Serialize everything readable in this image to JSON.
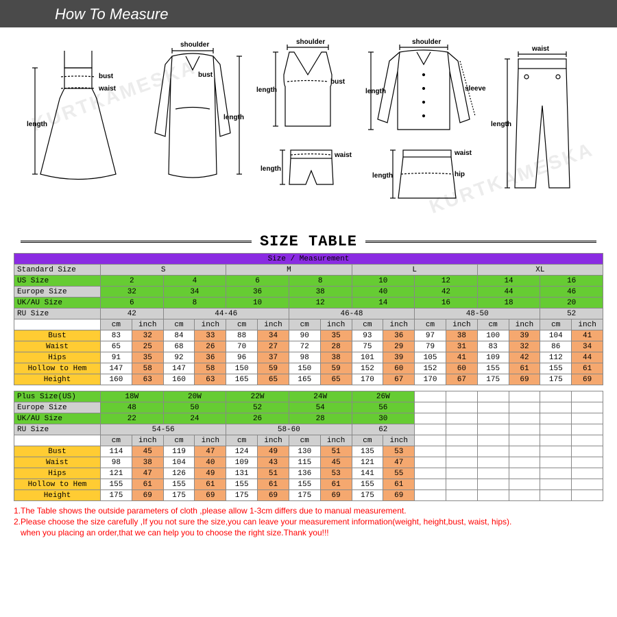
{
  "header": {
    "title": "How To Measure"
  },
  "size_table_title": "SIZE TABLE",
  "diagram_labels": {
    "bust": "bust",
    "waist": "waist",
    "length": "length",
    "shoulder": "shoulder",
    "sleeve": "sleeve",
    "hip": "hip"
  },
  "table1": {
    "header": "Size / Measurement",
    "rows": {
      "standard": {
        "label": "Standard Size",
        "vals": [
          "S",
          "M",
          "L",
          "XL"
        ]
      },
      "us": {
        "label": "US Size",
        "vals": [
          "2",
          "4",
          "6",
          "8",
          "10",
          "12",
          "14",
          "16"
        ]
      },
      "eu": {
        "label": "Europe Size",
        "vals": [
          "32",
          "34",
          "36",
          "38",
          "40",
          "42",
          "44",
          "46"
        ]
      },
      "ukau": {
        "label": "UK/AU Size",
        "vals": [
          "6",
          "8",
          "10",
          "12",
          "14",
          "16",
          "18",
          "20"
        ]
      },
      "ru": {
        "label": "RU Size",
        "vals": [
          "42",
          "44-46",
          "46-48",
          "48-50",
          "52"
        ]
      },
      "unit": {
        "cm": "cm",
        "inch": "inch"
      },
      "bust": {
        "label": "Bust",
        "cm": [
          "83",
          "84",
          "88",
          "90",
          "93",
          "97",
          "100",
          "104"
        ],
        "in": [
          "32",
          "33",
          "34",
          "35",
          "36",
          "38",
          "39",
          "41"
        ]
      },
      "waist": {
        "label": "Waist",
        "cm": [
          "65",
          "68",
          "70",
          "72",
          "75",
          "79",
          "83",
          "86"
        ],
        "in": [
          "25",
          "26",
          "27",
          "28",
          "29",
          "31",
          "32",
          "34"
        ]
      },
      "hips": {
        "label": "Hips",
        "cm": [
          "91",
          "92",
          "96",
          "98",
          "101",
          "105",
          "109",
          "112"
        ],
        "in": [
          "35",
          "36",
          "37",
          "38",
          "39",
          "41",
          "42",
          "44"
        ]
      },
      "hollow": {
        "label": "Hollow to Hem",
        "cm": [
          "147",
          "147",
          "150",
          "150",
          "152",
          "152",
          "155",
          "155"
        ],
        "in": [
          "58",
          "58",
          "59",
          "59",
          "60",
          "60",
          "61",
          "61"
        ]
      },
      "height": {
        "label": "Height",
        "cm": [
          "160",
          "160",
          "165",
          "165",
          "170",
          "170",
          "175",
          "175"
        ],
        "in": [
          "63",
          "63",
          "65",
          "65",
          "67",
          "67",
          "69",
          "69"
        ]
      }
    }
  },
  "table2": {
    "rows": {
      "plus": {
        "label": "Plus Size(US)",
        "vals": [
          "18W",
          "20W",
          "22W",
          "24W",
          "26W"
        ]
      },
      "eu": {
        "label": "Europe Size",
        "vals": [
          "48",
          "50",
          "52",
          "54",
          "56"
        ]
      },
      "ukau": {
        "label": "UK/AU Size",
        "vals": [
          "22",
          "24",
          "26",
          "28",
          "30"
        ]
      },
      "ru": {
        "label": "RU Size",
        "vals": [
          "54-56",
          "58-60",
          "62"
        ]
      },
      "unit": {
        "cm": "cm",
        "inch": "inch"
      },
      "bust": {
        "label": "Bust",
        "cm": [
          "114",
          "119",
          "124",
          "130",
          "135"
        ],
        "in": [
          "45",
          "47",
          "49",
          "51",
          "53"
        ]
      },
      "waist": {
        "label": "Waist",
        "cm": [
          "98",
          "104",
          "109",
          "115",
          "121"
        ],
        "in": [
          "38",
          "40",
          "43",
          "45",
          "47"
        ]
      },
      "hips": {
        "label": "Hips",
        "cm": [
          "121",
          "126",
          "131",
          "136",
          "141"
        ],
        "in": [
          "47",
          "49",
          "51",
          "53",
          "55"
        ]
      },
      "hollow": {
        "label": "Hollow to Hem",
        "cm": [
          "155",
          "155",
          "155",
          "155",
          "155"
        ],
        "in": [
          "61",
          "61",
          "61",
          "61",
          "61"
        ]
      },
      "height": {
        "label": "Height",
        "cm": [
          "175",
          "175",
          "175",
          "175",
          "175"
        ],
        "in": [
          "69",
          "69",
          "69",
          "69",
          "69"
        ]
      }
    }
  },
  "notes": {
    "n1": "1.The Table shows the outside parameters of cloth ,please allow 1-3cm differs due to manual measurement.",
    "n2": "2.Please choose the size carefully ,If you not sure the size,you can leave your measurement information(weight, height,bust, waist, hips).",
    "n3": "   when you placing an order,that we can help you to choose the right size.Thank you!!!"
  },
  "watermark_text": "KURTKAMESKA",
  "colors": {
    "purple": "#8a2be2",
    "green": "#66cc33",
    "grey": "#d0d0d0",
    "orange": "#f5a86f",
    "yellow": "#ffcc33",
    "red": "#ff0000"
  }
}
